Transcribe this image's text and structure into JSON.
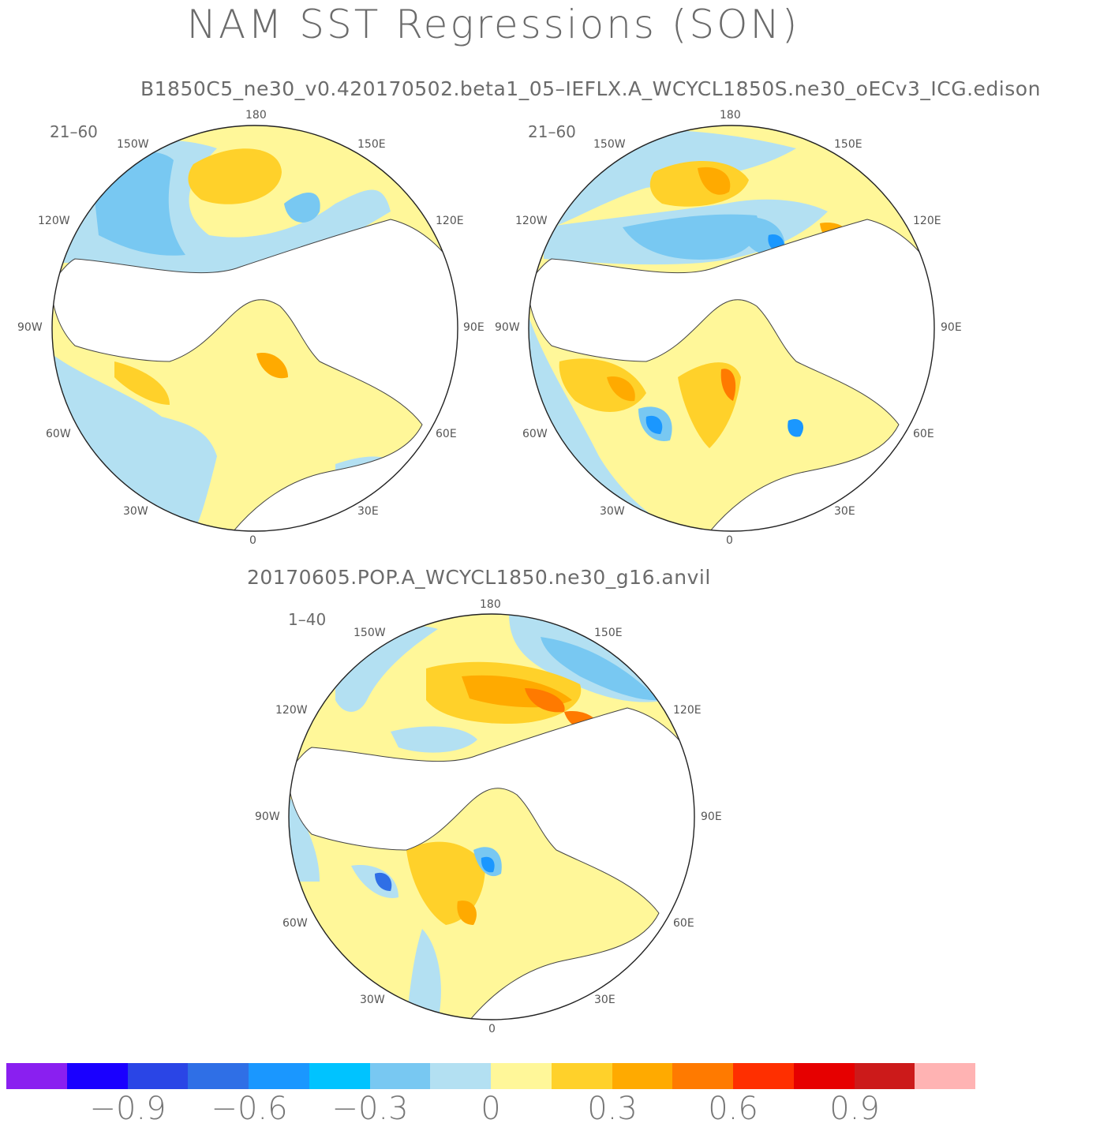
{
  "title": "NAM SST Regressions (SON)",
  "subtitle_top": "B1850C5_ne30_v0.420170502.beta1_05–IEFLX.A_WCYCL1850S.ne30_oECv3_ICG.edison",
  "subtitle_bottom": "20170605.POP.A_WCYCL1850.ne30_g16.anvil",
  "maps": [
    {
      "period": "21–60"
    },
    {
      "period": "21–60"
    },
    {
      "period": "1–40"
    }
  ],
  "longitude_labels": {
    "top": "180",
    "top_left": "150W",
    "top_right": "150E",
    "upper_left": "120W",
    "upper_right": "120E",
    "left": "90W",
    "right": "90E",
    "lower_left": "60W",
    "lower_right": "60E",
    "bottom_left": "30W",
    "bottom_right": "30E",
    "bottom": "0"
  },
  "colorbar": {
    "colors": [
      "#8a1ff0",
      "#1a00ff",
      "#2a45e6",
      "#2f6fe6",
      "#1a97ff",
      "#00c3ff",
      "#78c8f2",
      "#b3e0f2",
      "#fff799",
      "#ffd12a",
      "#ffaa00",
      "#ff7a00",
      "#ff2f00",
      "#e60000",
      "#cc1a1a",
      "#ffb3b3"
    ],
    "ticks": [
      "−0.9",
      "−0.6",
      "−0.3",
      "0",
      "0.3",
      "0.6",
      "0.9"
    ]
  },
  "palette": {
    "land": "#ffffff",
    "coast": "#444444",
    "rim": "#222222"
  }
}
